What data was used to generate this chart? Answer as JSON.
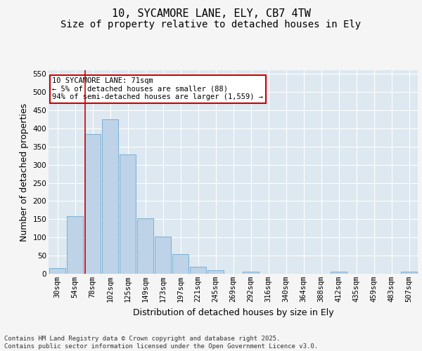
{
  "title_line1": "10, SYCAMORE LANE, ELY, CB7 4TW",
  "title_line2": "Size of property relative to detached houses in Ely",
  "xlabel": "Distribution of detached houses by size in Ely",
  "ylabel": "Number of detached properties",
  "categories": [
    "30sqm",
    "54sqm",
    "78sqm",
    "102sqm",
    "125sqm",
    "149sqm",
    "173sqm",
    "197sqm",
    "221sqm",
    "245sqm",
    "269sqm",
    "292sqm",
    "316sqm",
    "340sqm",
    "364sqm",
    "388sqm",
    "412sqm",
    "435sqm",
    "459sqm",
    "483sqm",
    "507sqm"
  ],
  "values": [
    15,
    158,
    385,
    425,
    328,
    153,
    102,
    55,
    20,
    10,
    0,
    5,
    0,
    0,
    0,
    0,
    5,
    0,
    0,
    0,
    5
  ],
  "bar_color": "#bed3e8",
  "bar_edge_color": "#7bafd4",
  "vline_x": 1.58,
  "vline_color": "#cc0000",
  "annotation_text": "10 SYCAMORE LANE: 71sqm\n← 5% of detached houses are smaller (88)\n94% of semi-detached houses are larger (1,559) →",
  "annotation_box_color": "#cc0000",
  "ylim": [
    0,
    560
  ],
  "yticks": [
    0,
    50,
    100,
    150,
    200,
    250,
    300,
    350,
    400,
    450,
    500,
    550
  ],
  "background_color": "#dde8f0",
  "fig_background_color": "#f5f5f5",
  "footer_text": "Contains HM Land Registry data © Crown copyright and database right 2025.\nContains public sector information licensed under the Open Government Licence v3.0.",
  "title_fontsize": 11,
  "subtitle_fontsize": 10,
  "axis_label_fontsize": 9,
  "tick_fontsize": 7.5,
  "footer_fontsize": 6.5
}
